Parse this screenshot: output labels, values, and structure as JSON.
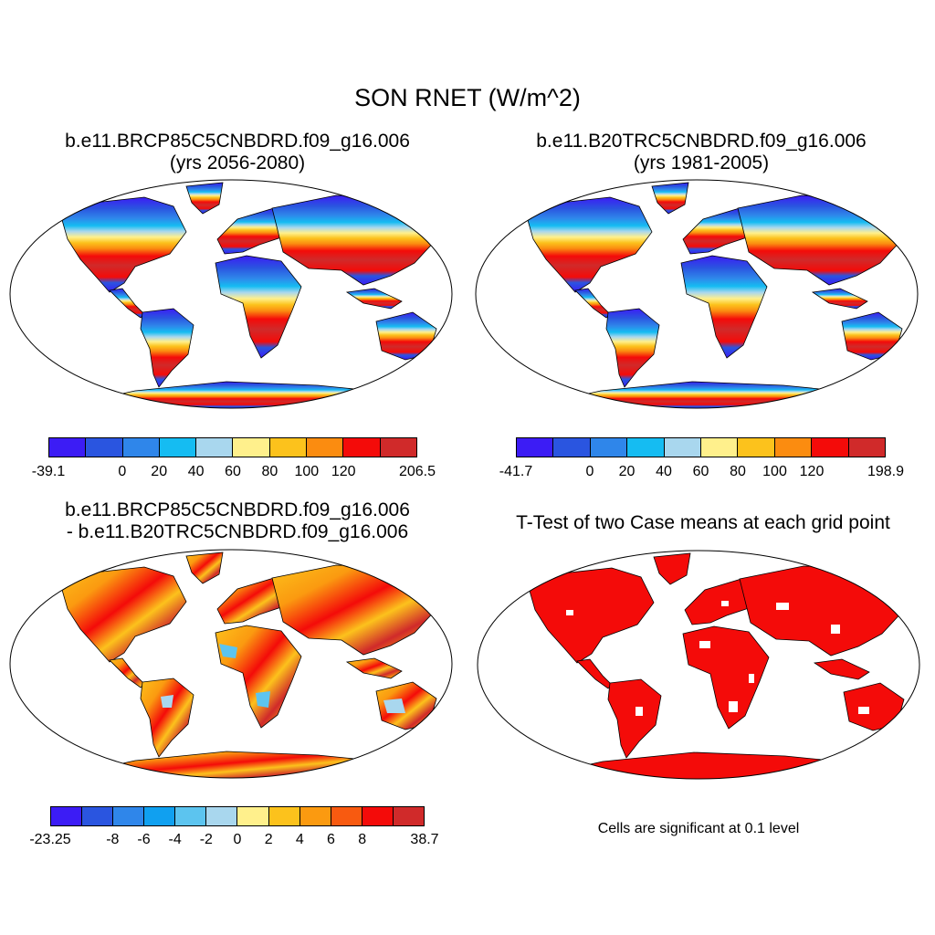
{
  "title": "SON RNET (W/m^2)",
  "panels": {
    "top_left": {
      "title_line1": "b.e11.BRCP85C5CNBDRD.f09_g16.006",
      "title_line2": "(yrs 2056-2080)",
      "colorbar": {
        "colors": [
          "#3c1cf5",
          "#2a55e0",
          "#2f86ea",
          "#15bcf2",
          "#a9d7ee",
          "#fff08c",
          "#fcc21c",
          "#fb8c10",
          "#f40b09",
          "#d02a2a"
        ],
        "labels": [
          "-39.1",
          "0",
          "20",
          "40",
          "60",
          "80",
          "100",
          "120",
          "206.5"
        ]
      }
    },
    "top_right": {
      "title_line1": "b.e11.B20TRC5CNBDRD.f09_g16.006",
      "title_line2": "(yrs 1981-2005)",
      "colorbar": {
        "colors": [
          "#3c1cf5",
          "#2a55e0",
          "#2f86ea",
          "#15bcf2",
          "#a9d7ee",
          "#fff08c",
          "#fcc21c",
          "#fb8c10",
          "#f40b09",
          "#d02a2a"
        ],
        "labels": [
          "-41.7",
          "0",
          "20",
          "40",
          "60",
          "80",
          "100",
          "120",
          "198.9"
        ]
      }
    },
    "bottom_left": {
      "title_line1": "b.e11.BRCP85C5CNBDRD.f09_g16.006",
      "title_line2": "- b.e11.B20TRC5CNBDRD.f09_g16.006",
      "colorbar": {
        "colors": [
          "#3c1cf5",
          "#2a55e0",
          "#2f86ea",
          "#10a0f0",
          "#5cc4ef",
          "#a9d7ee",
          "#fff08c",
          "#fcc21c",
          "#fb9a10",
          "#f85a10",
          "#f40b09",
          "#d02a2a"
        ],
        "labels": [
          "-23.25",
          "-8",
          "-6",
          "-4",
          "-2",
          "0",
          "2",
          "4",
          "6",
          "8",
          "38.7"
        ]
      }
    },
    "bottom_right": {
      "title": "T-Test of two Case means at each grid point",
      "note": "Cells are significant at 0.1 level",
      "fill_color": "#f40b09"
    }
  }
}
